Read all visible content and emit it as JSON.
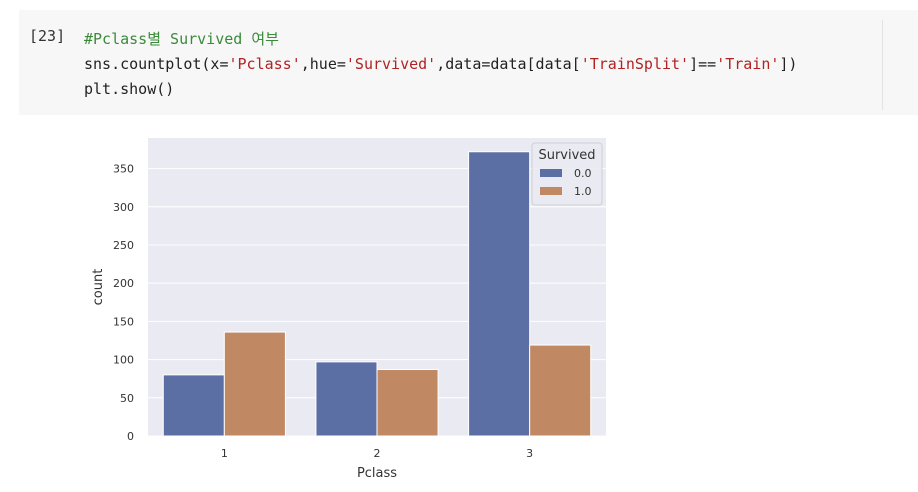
{
  "cell": {
    "prompt": "[23]",
    "code_lines": [
      [
        {
          "t": "#Pclass별 Survived 여부",
          "c": "cm"
        }
      ],
      [
        {
          "t": "sns.countplot(x=",
          "c": ""
        },
        {
          "t": "'Pclass'",
          "c": "str"
        },
        {
          "t": ",hue=",
          "c": ""
        },
        {
          "t": "'Survived'",
          "c": "str"
        },
        {
          "t": ",data=data[data[",
          "c": ""
        },
        {
          "t": "'TrainSplit'",
          "c": "str"
        },
        {
          "t": "]==",
          "c": ""
        },
        {
          "t": "'Train'",
          "c": "str"
        },
        {
          "t": "])",
          "c": ""
        }
      ],
      [
        {
          "t": "plt.show()",
          "c": ""
        }
      ]
    ]
  },
  "chart_data": {
    "type": "bar",
    "categories": [
      "1",
      "2",
      "3"
    ],
    "series": [
      {
        "name": "0.0",
        "values": [
          80,
          97,
          372
        ],
        "color": "#5b6fa4"
      },
      {
        "name": "1.0",
        "values": [
          136,
          87,
          119
        ],
        "color": "#c08863"
      }
    ],
    "xlabel": "Pclass",
    "ylabel": "count",
    "yticks": [
      0,
      50,
      100,
      150,
      200,
      250,
      300,
      350
    ],
    "ylim": [
      0,
      390
    ],
    "grid": true,
    "legend": {
      "title": "Survived",
      "position": "top-right"
    },
    "background": "#eaeaf2"
  }
}
